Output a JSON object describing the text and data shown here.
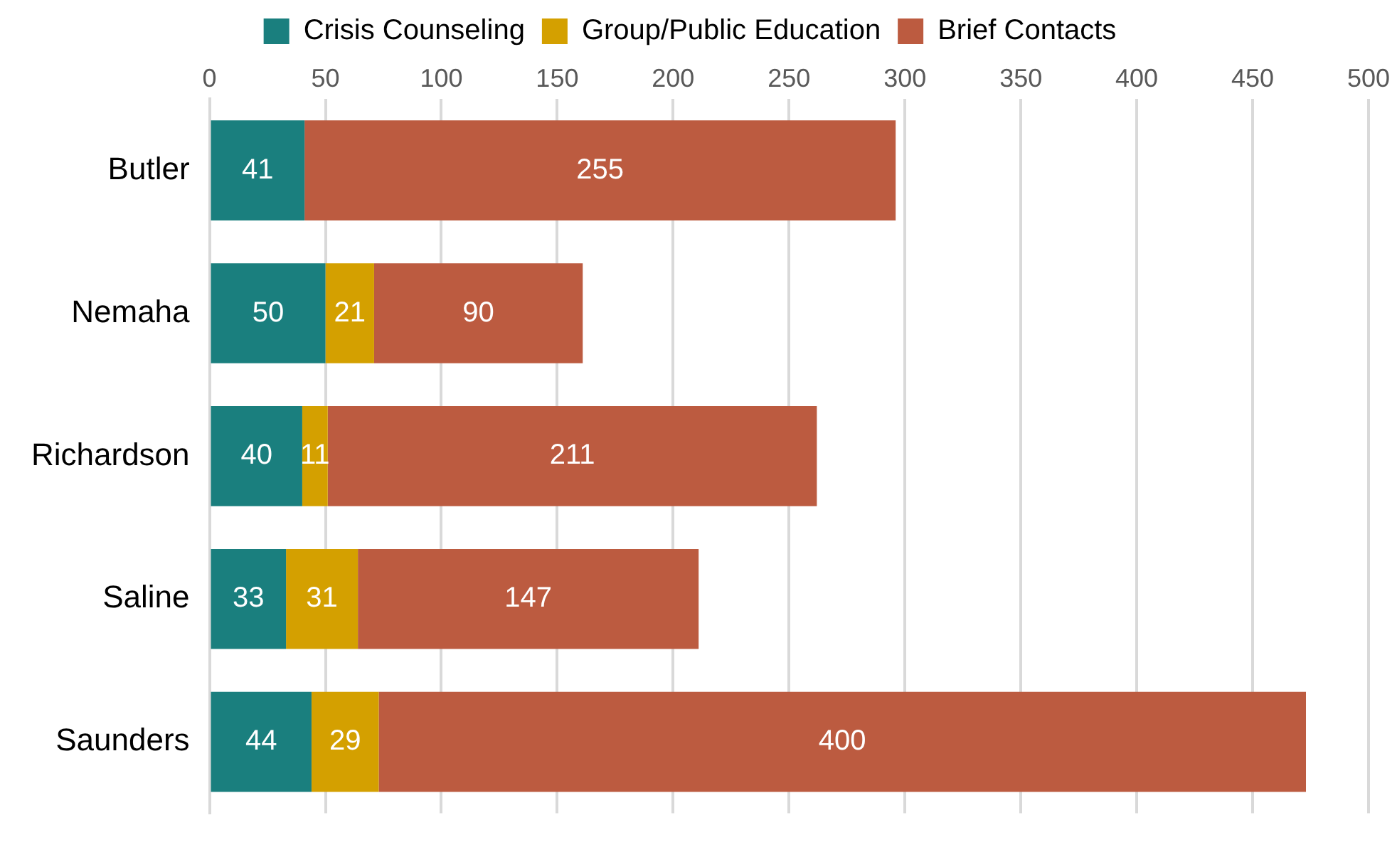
{
  "chart_data": {
    "type": "bar",
    "orientation": "horizontal",
    "stacked": true,
    "categories": [
      "Butler",
      "Nemaha",
      "Richardson",
      "Saline",
      "Saunders"
    ],
    "series": [
      {
        "name": "Crisis Counseling",
        "color": "#1a7f7e",
        "values": [
          41,
          50,
          40,
          33,
          44
        ]
      },
      {
        "name": "Group/Public Education",
        "color": "#d4a000",
        "values": [
          null,
          21,
          11,
          31,
          29
        ]
      },
      {
        "name": "Brief Contacts",
        "color": "#bc5b40",
        "values": [
          255,
          90,
          211,
          147,
          400
        ]
      }
    ],
    "xlim": [
      0,
      500
    ],
    "xticks": [
      0,
      50,
      100,
      150,
      200,
      250,
      300,
      350,
      400,
      450,
      500
    ],
    "grid": "x",
    "legend": "top",
    "data_labels": true
  }
}
